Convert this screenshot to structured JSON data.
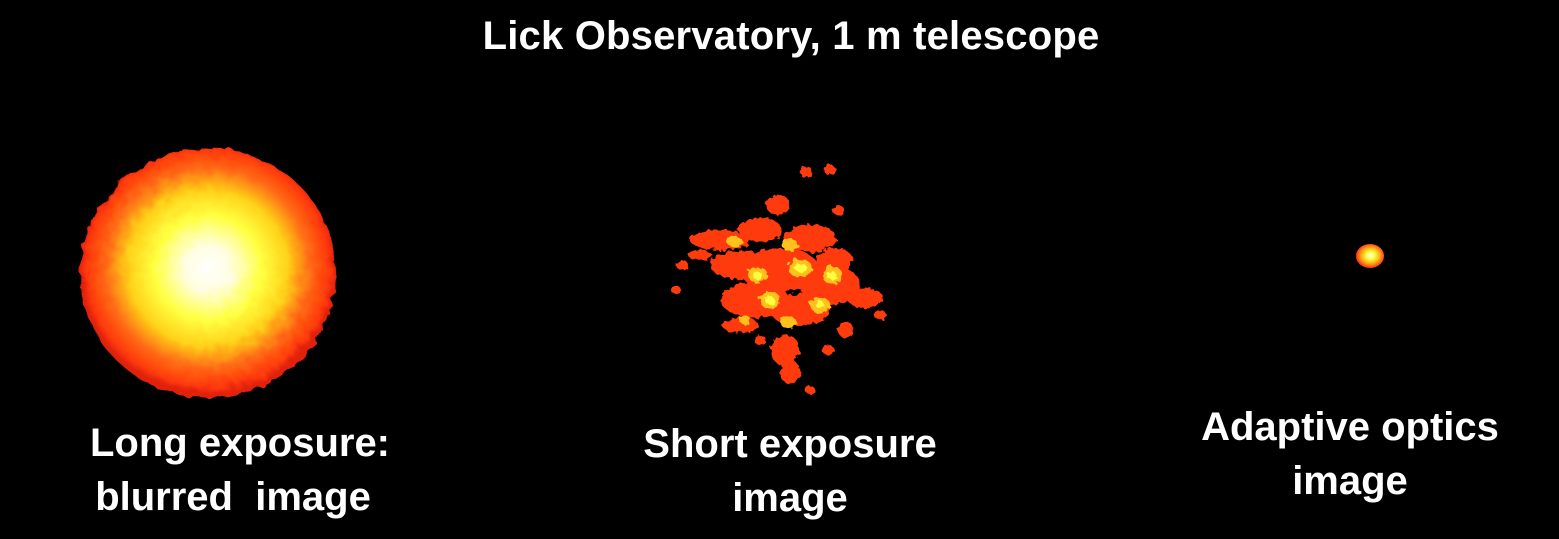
{
  "title": "Lick Observatory, 1 m telescope",
  "panels": [
    {
      "caption_line1": "Long exposure:",
      "caption_line2": "blurred  image"
    },
    {
      "caption_line1": "Short exposure",
      "caption_line2": "image"
    },
    {
      "caption_line1": "Adaptive optics",
      "caption_line2": "image"
    }
  ],
  "colors": {
    "background": "#000000",
    "text": "#ffffff",
    "core": "#ffffff",
    "inner": "#ffff3a",
    "mid": "#ffc11a",
    "outer": "#ff3a10"
  }
}
